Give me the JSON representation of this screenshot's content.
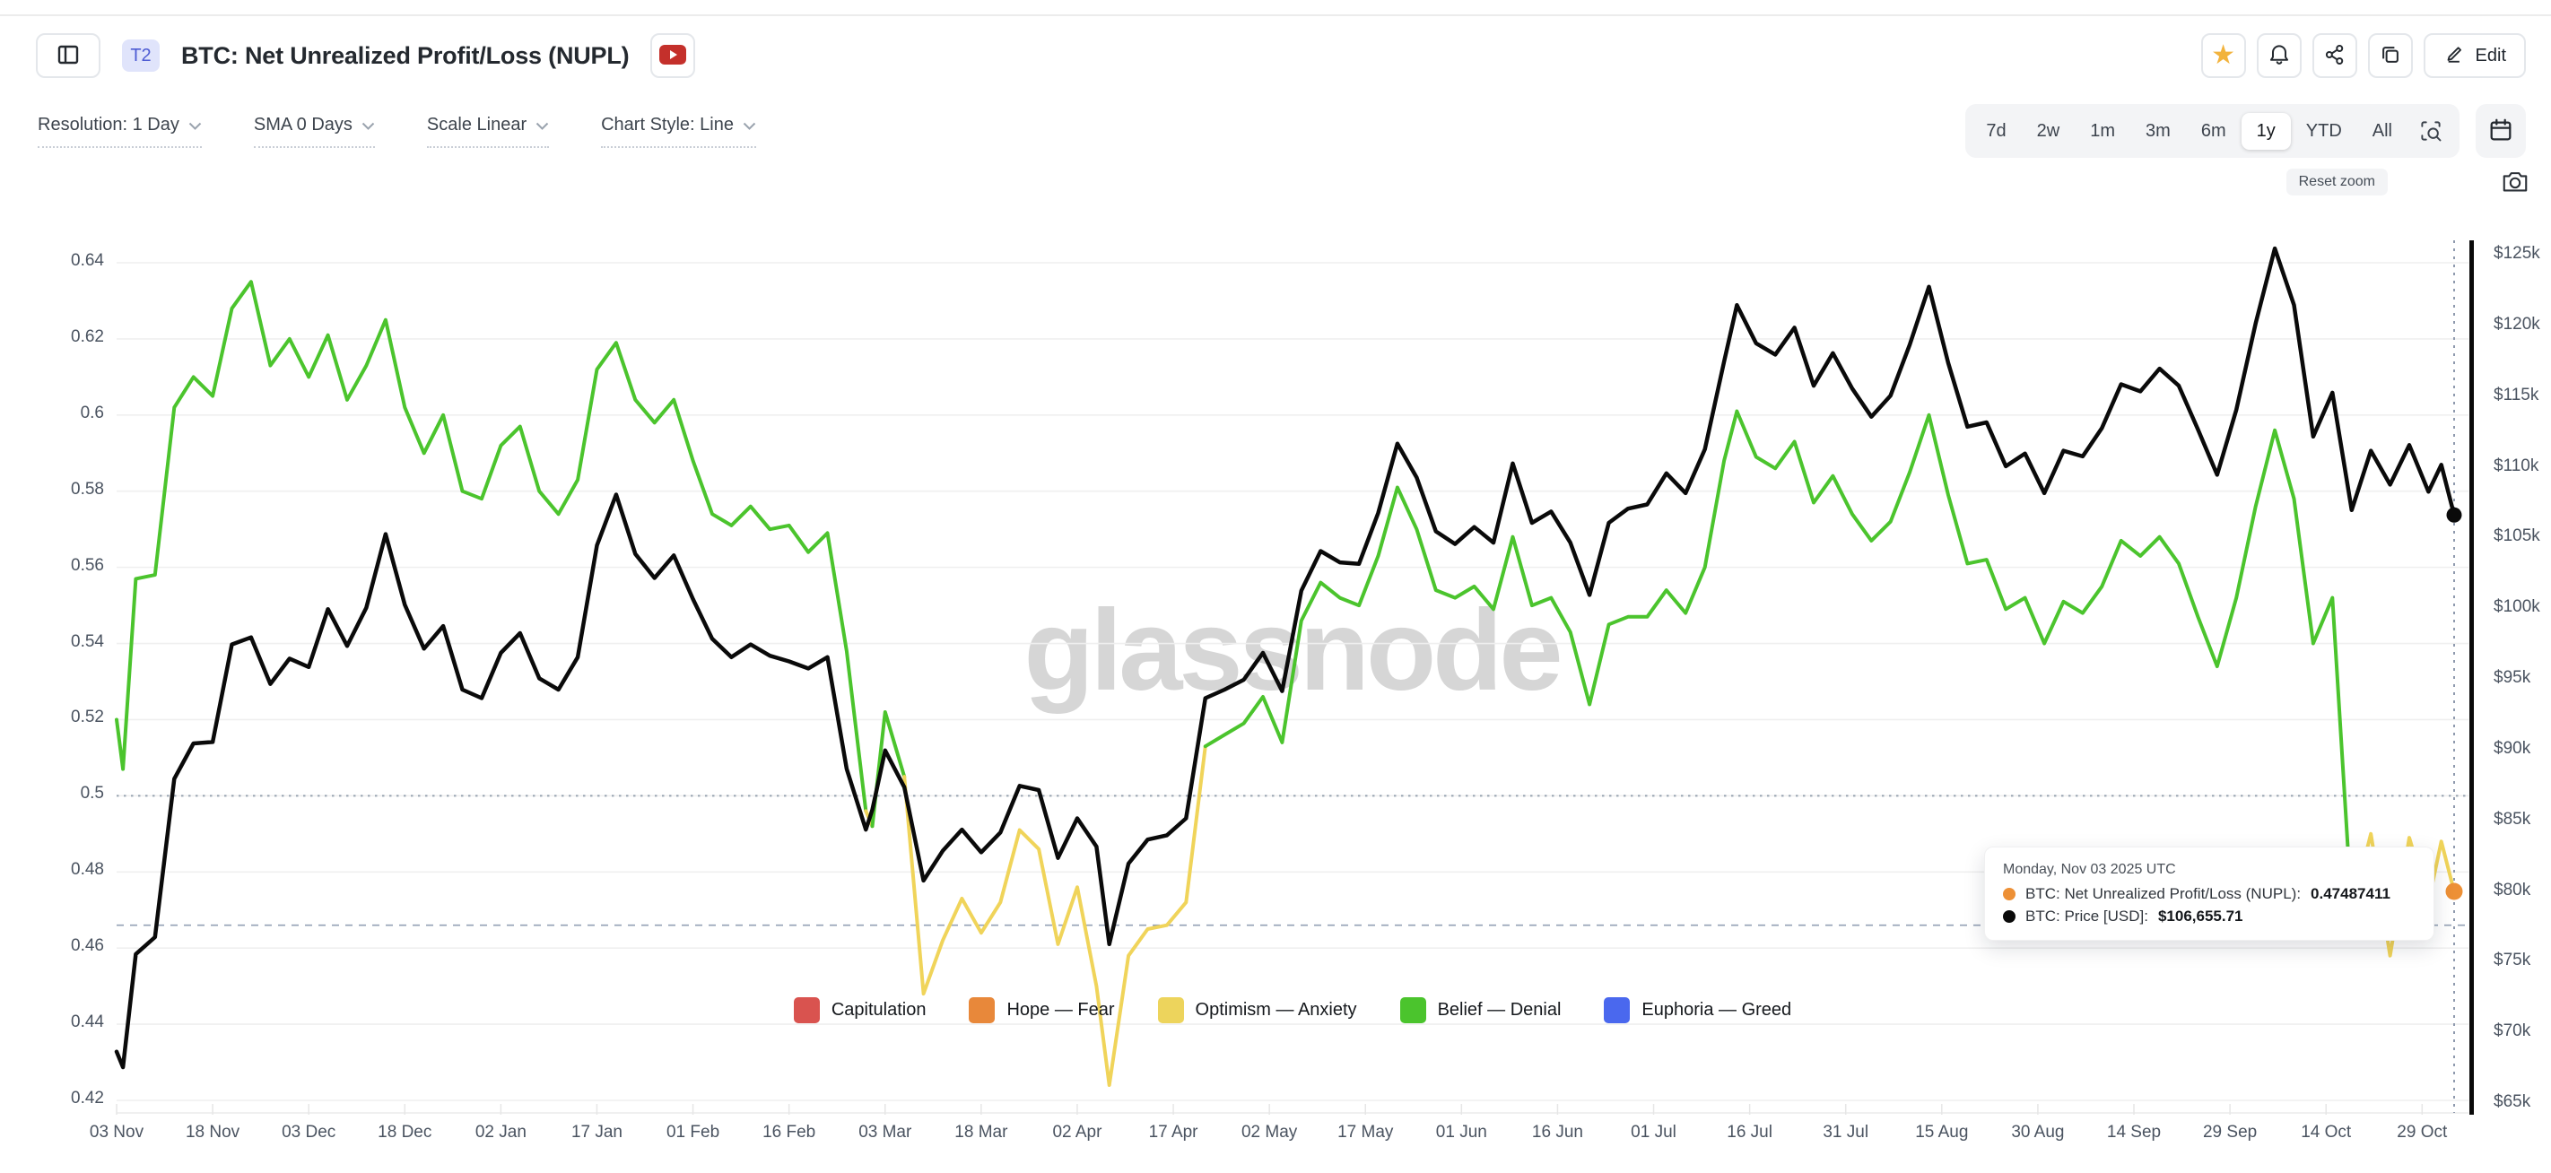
{
  "header": {
    "badge": "T2",
    "title": "BTC: Net Unrealized Profit/Loss (NUPL)",
    "edit_label": "Edit"
  },
  "controls": [
    {
      "label": "Resolution: 1 Day"
    },
    {
      "label": "SMA 0 Days"
    },
    {
      "label": "Scale Linear"
    },
    {
      "label": "Chart Style: Line"
    }
  ],
  "range_selector": {
    "options": [
      "7d",
      "2w",
      "1m",
      "3m",
      "6m",
      "1y",
      "YTD",
      "All"
    ],
    "active": "1y"
  },
  "reset_zoom_label": "Reset zoom",
  "watermark": "glassnode",
  "tooltip": {
    "date": "Monday, Nov 03 2025 UTC",
    "rows": [
      {
        "marker_color": "#ED9036",
        "label": "BTC: Net Unrealized Profit/Loss (NUPL):",
        "value": "0.47487411"
      },
      {
        "marker_color": "#0A0A0A",
        "label": "BTC: Price [USD]:",
        "value": "$106,655.71"
      }
    ]
  },
  "legend": [
    {
      "label": "Capitulation",
      "color": "#D9534F"
    },
    {
      "label": "Hope — Fear",
      "color": "#E8883A"
    },
    {
      "label": "Optimism — Anxiety",
      "color": "#EDD45C"
    },
    {
      "label": "Belief — Denial",
      "color": "#4BC42D"
    },
    {
      "label": "Euphoria — Greed",
      "color": "#4A68EE"
    }
  ],
  "chart_data": {
    "type": "line",
    "title": "BTC: Net Unrealized Profit/Loss (NUPL) vs BTC Price [USD], 1y view, daily resolution",
    "x_axis": {
      "start_date": "2024-11-03",
      "end_date": "2025-11-03",
      "tick_labels": [
        "03 Nov",
        "18 Nov",
        "03 Dec",
        "18 Dec",
        "02 Jan",
        "17 Jan",
        "01 Feb",
        "16 Feb",
        "03 Mar",
        "18 Mar",
        "02 Apr",
        "17 Apr",
        "02 May",
        "17 May",
        "01 Jun",
        "16 Jun",
        "01 Jul",
        "16 Jul",
        "31 Jul",
        "15 Aug",
        "30 Aug",
        "14 Sep",
        "29 Sep",
        "14 Oct",
        "29 Oct"
      ],
      "tick_day_offsets": [
        0,
        15,
        30,
        45,
        60,
        75,
        90,
        105,
        120,
        135,
        150,
        165,
        180,
        195,
        210,
        225,
        240,
        255,
        270,
        285,
        300,
        315,
        330,
        345,
        360
      ]
    },
    "left_axis": {
      "name": "NUPL",
      "ticks": [
        0.64,
        0.62,
        0.6,
        0.58,
        0.56,
        0.54,
        0.52,
        0.5,
        0.48,
        0.46,
        0.44,
        0.42
      ],
      "tick_labels": [
        "0.64",
        "0.62",
        "0.6",
        "0.58",
        "0.56",
        "0.54",
        "0.52",
        "0.5",
        "0.48",
        "0.46",
        "0.44",
        "0.42"
      ],
      "range": [
        0.417,
        0.645
      ],
      "grid": true
    },
    "right_axis": {
      "name": "BTC Price [USD]",
      "ticks_usd_k": [
        125,
        120,
        115,
        110,
        105,
        100,
        95,
        90,
        85,
        80,
        75,
        70,
        65
      ],
      "tick_labels": [
        "$125k",
        "$120k",
        "$115k",
        "$110k",
        "$105k",
        "$100k",
        "$95k",
        "$90k",
        "$85k",
        "$80k",
        "$75k",
        "$70k",
        "$65k"
      ],
      "range_usd_k": [
        63.8,
        126.2
      ]
    },
    "reference_lines": {
      "dotted_left_axis_value": 0.5
    },
    "crosshair": {
      "day_offset": 365,
      "nupl_value": 0.47487411,
      "price_value_usd_k": 106.65571,
      "hline_left_axis_value": 0.466
    },
    "day_offsets": [
      0,
      1,
      3,
      6,
      9,
      12,
      15,
      18,
      21,
      24,
      27,
      30,
      33,
      36,
      39,
      42,
      45,
      48,
      51,
      54,
      57,
      60,
      63,
      66,
      69,
      72,
      75,
      78,
      81,
      84,
      87,
      90,
      93,
      96,
      99,
      102,
      105,
      108,
      111,
      114,
      117,
      118,
      120,
      123,
      126,
      129,
      132,
      135,
      138,
      141,
      144,
      147,
      150,
      153,
      155,
      158,
      161,
      164,
      167,
      170,
      173,
      176,
      179,
      182,
      185,
      188,
      191,
      194,
      197,
      200,
      203,
      206,
      209,
      212,
      215,
      218,
      221,
      224,
      227,
      230,
      233,
      236,
      239,
      242,
      245,
      248,
      251,
      253,
      256,
      259,
      262,
      265,
      268,
      271,
      274,
      277,
      280,
      283,
      286,
      289,
      292,
      295,
      298,
      301,
      304,
      307,
      310,
      313,
      316,
      319,
      322,
      325,
      328,
      331,
      334,
      337,
      340,
      343,
      346,
      349,
      352,
      355,
      358,
      361,
      363,
      365
    ],
    "series": [
      {
        "name": "BTC: Net Unrealized Profit/Loss (NUPL)",
        "axis": "left",
        "threshold": 0.5,
        "color_above_threshold": "#4BC42D",
        "color_below_threshold": "#F0D45A",
        "zone_above": "Belief — Denial",
        "zone_below": "Optimism — Anxiety",
        "values": [
          0.52,
          0.507,
          0.557,
          0.558,
          0.602,
          0.61,
          0.605,
          0.628,
          0.635,
          0.613,
          0.62,
          0.61,
          0.621,
          0.604,
          0.613,
          0.625,
          0.602,
          0.59,
          0.6,
          0.58,
          0.578,
          0.592,
          0.597,
          0.58,
          0.574,
          0.583,
          0.612,
          0.619,
          0.604,
          0.598,
          0.604,
          0.588,
          0.574,
          0.571,
          0.576,
          0.57,
          0.571,
          0.564,
          0.569,
          0.538,
          0.496,
          0.492,
          0.522,
          0.505,
          0.448,
          0.462,
          0.473,
          0.464,
          0.472,
          0.491,
          0.486,
          0.461,
          0.476,
          0.45,
          0.424,
          0.458,
          0.465,
          0.466,
          0.472,
          0.513,
          0.516,
          0.519,
          0.526,
          0.514,
          0.546,
          0.556,
          0.552,
          0.55,
          0.563,
          0.581,
          0.57,
          0.554,
          0.552,
          0.555,
          0.549,
          0.568,
          0.55,
          0.552,
          0.543,
          0.524,
          0.545,
          0.547,
          0.547,
          0.554,
          0.548,
          0.56,
          0.588,
          0.601,
          0.589,
          0.586,
          0.593,
          0.577,
          0.584,
          0.574,
          0.567,
          0.572,
          0.585,
          0.6,
          0.579,
          0.561,
          0.562,
          0.549,
          0.552,
          0.54,
          0.551,
          0.548,
          0.555,
          0.567,
          0.563,
          0.568,
          0.561,
          0.547,
          0.534,
          0.552,
          0.576,
          0.596,
          0.578,
          0.54,
          0.552,
          0.47,
          0.49,
          0.458,
          0.489,
          0.472,
          0.488,
          0.47487411
        ]
      },
      {
        "name": "BTC: Price [USD]",
        "axis": "right",
        "color": "#0A0A0A",
        "values_usd_k": [
          68.7,
          67.6,
          75.6,
          76.8,
          88.0,
          90.5,
          90.6,
          97.5,
          98.0,
          94.7,
          96.5,
          95.9,
          100.0,
          97.4,
          100.1,
          105.3,
          100.3,
          97.2,
          98.8,
          94.3,
          93.7,
          96.9,
          98.3,
          95.1,
          94.3,
          96.6,
          104.5,
          108.1,
          103.9,
          102.2,
          103.8,
          100.7,
          97.9,
          96.6,
          97.5,
          96.7,
          96.3,
          95.8,
          96.6,
          88.7,
          84.4,
          85.8,
          90.0,
          87.4,
          80.8,
          82.9,
          84.4,
          82.8,
          84.2,
          87.5,
          87.2,
          82.4,
          85.2,
          83.2,
          76.3,
          82.0,
          83.7,
          84.0,
          85.2,
          93.7,
          94.3,
          95.0,
          96.9,
          94.2,
          101.3,
          104.1,
          103.3,
          103.2,
          106.8,
          111.7,
          109.3,
          105.5,
          104.6,
          105.8,
          104.7,
          110.3,
          106.1,
          106.9,
          104.7,
          101.0,
          106.1,
          107.1,
          107.4,
          109.6,
          108.2,
          111.3,
          117.5,
          121.5,
          118.8,
          118.0,
          119.9,
          115.8,
          118.1,
          115.6,
          113.6,
          115.1,
          118.7,
          122.8,
          117.4,
          112.9,
          113.2,
          110.1,
          111.0,
          108.2,
          111.2,
          110.8,
          112.8,
          115.9,
          115.4,
          117.0,
          115.8,
          112.7,
          109.5,
          114.1,
          120.2,
          125.5,
          121.5,
          112.2,
          115.3,
          107.0,
          111.2,
          108.8,
          111.6,
          108.3,
          110.2,
          106.656
        ]
      }
    ],
    "legend_position": "bottom-center",
    "grid": "horizontal-only"
  }
}
